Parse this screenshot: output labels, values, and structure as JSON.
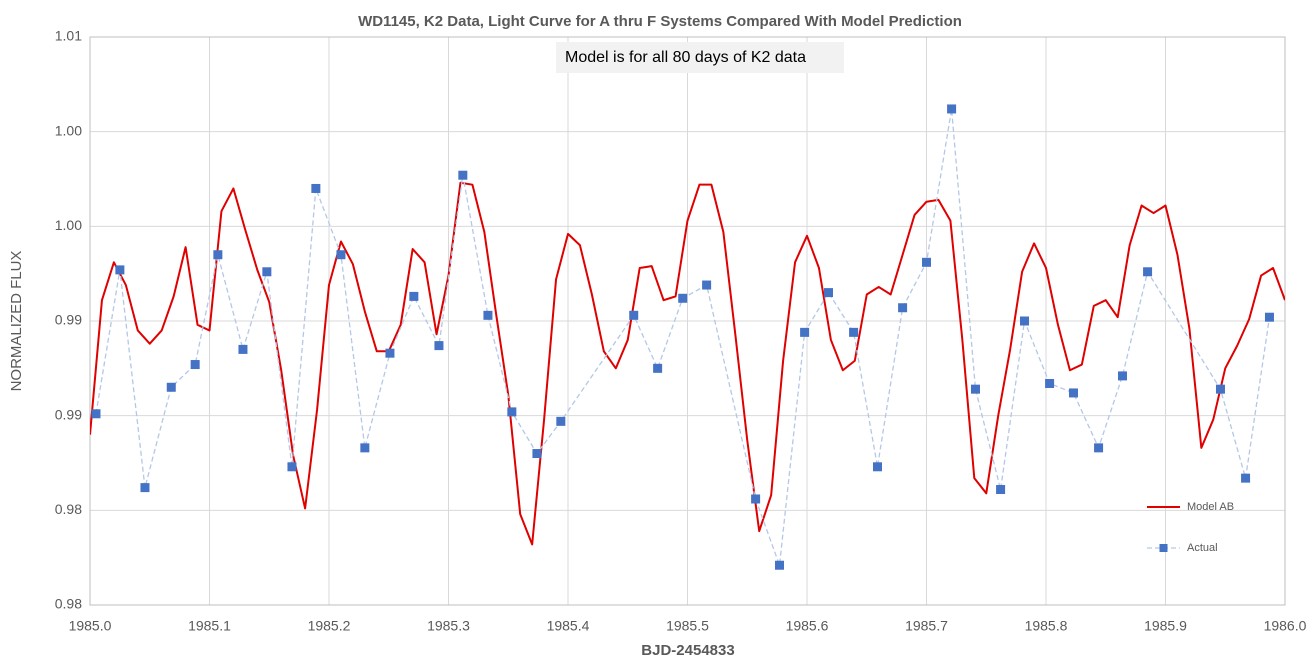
{
  "chart_data": {
    "type": "line",
    "title": "WD1145, K2 Data, Light Curve for A thru F Systems Compared With Model Prediction",
    "annotation": "Model is for all 80 days of K2 data",
    "xlabel": "BJD-2454833",
    "ylabel": "NORMALIZED FLUX",
    "xlim": [
      1985,
      1986
    ],
    "ylim": [
      0.98,
      1.01
    ],
    "xticks": [
      {
        "value": 1985,
        "label": "1985.0"
      },
      1985.1,
      1985.2,
      1985.3,
      1985.4,
      1985.5,
      1985.6,
      1985.7,
      1985.8,
      1985.9,
      {
        "value": 1986,
        "label": "1986.0"
      }
    ],
    "yticks": [
      0.98,
      {
        "value": 0.985,
        "label": "0.98"
      },
      0.99,
      {
        "value": 0.995,
        "label": "0.99"
      },
      {
        "value": 1.0,
        "label": "1.00"
      },
      {
        "value": 1.005,
        "label": "1.00"
      },
      1.01
    ],
    "grid": true,
    "series": [
      {
        "name": "Model AB",
        "color": "#e00000",
        "style": "solid",
        "x": [
          1985,
          1985.01,
          1985.02,
          1985.03,
          1985.04,
          1985.05,
          1985.06,
          1985.07,
          1985.08,
          1985.09,
          1985.1,
          1985.11,
          1985.12,
          1985.13,
          1985.14,
          1985.15,
          1985.16,
          1985.17,
          1985.18,
          1985.19,
          1985.2,
          1985.21,
          1985.22,
          1985.23,
          1985.24,
          1985.25,
          1985.26,
          1985.27,
          1985.28,
          1985.29,
          1985.3,
          1985.31,
          1985.32,
          1985.33,
          1985.34,
          1985.35,
          1985.36,
          1985.37,
          1985.38,
          1985.39,
          1985.4,
          1985.41,
          1985.42,
          1985.43,
          1985.44,
          1985.45,
          1985.46,
          1985.47,
          1985.48,
          1985.49,
          1985.5,
          1985.51,
          1985.52,
          1985.53,
          1985.54,
          1985.55,
          1985.56,
          1985.57,
          1985.58,
          1985.59,
          1985.6,
          1985.61,
          1985.62,
          1985.63,
          1985.64,
          1985.65,
          1985.66,
          1985.67,
          1985.68,
          1985.69,
          1985.7,
          1985.71,
          1985.72,
          1985.73,
          1985.74,
          1985.75,
          1985.76,
          1985.77,
          1985.78,
          1985.79,
          1985.8,
          1985.81,
          1985.82,
          1985.83,
          1985.84,
          1985.85,
          1985.86,
          1985.87,
          1985.88,
          1985.89,
          1985.9,
          1985.91,
          1985.92,
          1985.93,
          1985.94,
          1985.95,
          1985.96,
          1985.97,
          1985.98,
          1985.99,
          1986
        ],
        "values": [
          0.989,
          0.9961,
          0.9981,
          0.9969,
          0.9945,
          0.9938,
          0.9945,
          0.9963,
          0.9989,
          0.9948,
          0.9945,
          1.0008,
          1.002,
          0.9998,
          0.9977,
          0.996,
          0.9924,
          0.9879,
          0.9851,
          0.9903,
          0.9969,
          0.9992,
          0.998,
          0.9955,
          0.9934,
          0.9934,
          0.9948,
          0.9988,
          0.9981,
          0.9943,
          0.9974,
          1.0023,
          1.0022,
          0.9997,
          0.9953,
          0.9911,
          0.9848,
          0.9832,
          0.9898,
          0.9972,
          0.9996,
          0.999,
          0.9964,
          0.9934,
          0.9925,
          0.994,
          0.9978,
          0.9979,
          0.9961,
          0.9963,
          1.0003,
          1.0022,
          1.0022,
          0.9997,
          0.9943,
          0.9887,
          0.9839,
          0.9858,
          0.9929,
          0.9981,
          0.9995,
          0.9978,
          0.994,
          0.9924,
          0.9929,
          0.9964,
          0.9968,
          0.9964,
          0.9985,
          1.0006,
          1.0013,
          1.0014,
          1.0003,
          0.994,
          0.9867,
          0.9859,
          0.99,
          0.9935,
          0.9976,
          0.9991,
          0.9978,
          0.9948,
          0.9924,
          0.9927,
          0.9958,
          0.9961,
          0.9952,
          0.999,
          1.0011,
          1.0007,
          1.0011,
          0.9985,
          0.9946,
          0.9883,
          0.9898,
          0.9925,
          0.9937,
          0.9951,
          0.9974,
          0.9978,
          0.9961
        ]
      },
      {
        "name": "Actual",
        "color": "#4472c4",
        "line_color": "#b4c7e7",
        "style": "dashed",
        "marker": "square",
        "x": [
          1985.005,
          1985.025,
          1985.046,
          1985.068,
          1985.088,
          1985.107,
          1985.128,
          1985.148,
          1985.169,
          1985.189,
          1985.21,
          1985.23,
          1985.251,
          1985.271,
          1985.292,
          1985.312,
          1985.333,
          1985.353,
          1985.374,
          1985.394,
          1985.455,
          1985.475,
          1985.496,
          1985.516,
          1985.557,
          1985.577,
          1985.598,
          1985.618,
          1985.639,
          1985.659,
          1985.68,
          1985.7,
          1985.721,
          1985.741,
          1985.762,
          1985.782,
          1985.803,
          1985.823,
          1985.844,
          1985.864,
          1985.885,
          1985.946,
          1985.967,
          1985.987
        ],
        "values": [
          0.9901,
          0.9977,
          0.9862,
          0.9915,
          0.9927,
          0.9985,
          0.9935,
          0.9976,
          0.9873,
          1.002,
          0.9985,
          0.9883,
          0.9933,
          0.9963,
          0.9937,
          1.0027,
          0.9953,
          0.9902,
          0.988,
          0.9897,
          0.9953,
          0.9925,
          0.9962,
          0.9969,
          0.9856,
          0.9821,
          0.9944,
          0.9965,
          0.9944,
          0.9873,
          0.9957,
          0.9981,
          1.0062,
          0.9914,
          0.9861,
          0.995,
          0.9917,
          0.9912,
          0.9883,
          0.9921,
          0.9976,
          0.9914,
          0.9867,
          0.9952
        ]
      }
    ]
  }
}
